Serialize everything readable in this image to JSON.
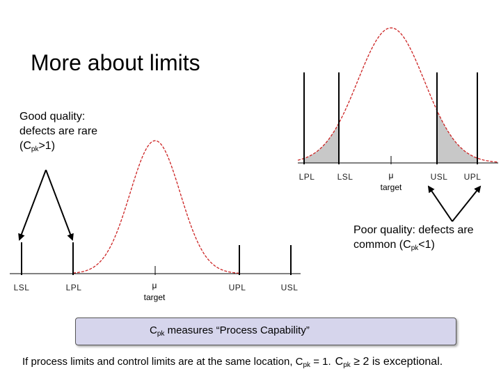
{
  "title": "More about limits",
  "good_note": {
    "line1": "Good quality:",
    "line2": "defects are rare",
    "prefix": "(C",
    "sub": "pk",
    "suffix": ">1)"
  },
  "poor_note": {
    "line1": "Poor quality: defects are",
    "prefix": "common (C",
    "sub": "pk",
    "suffix": "<1)"
  },
  "top_chart": {
    "labels": [
      "LPL",
      "LSL",
      "μ",
      "target",
      "USL",
      "UPL"
    ]
  },
  "bottom_chart": {
    "labels": [
      "LSL",
      "LPL",
      "μ",
      "target",
      "UPL",
      "USL"
    ]
  },
  "box": {
    "prefix": "C",
    "sub": "pk",
    "text": " measures “Process Capability”"
  },
  "footer": {
    "part1": "If process limits and control limits are at the same location, C",
    "sub1": "pk",
    "part1_end": " = 1.",
    "part2": "C",
    "sub2": "pk",
    "part2_end": " ≥ 2 is exceptional."
  },
  "colors": {
    "curve": "#cc2222",
    "tail_fill": "#c8c8c8",
    "box_fill": "#d6d5ec"
  }
}
